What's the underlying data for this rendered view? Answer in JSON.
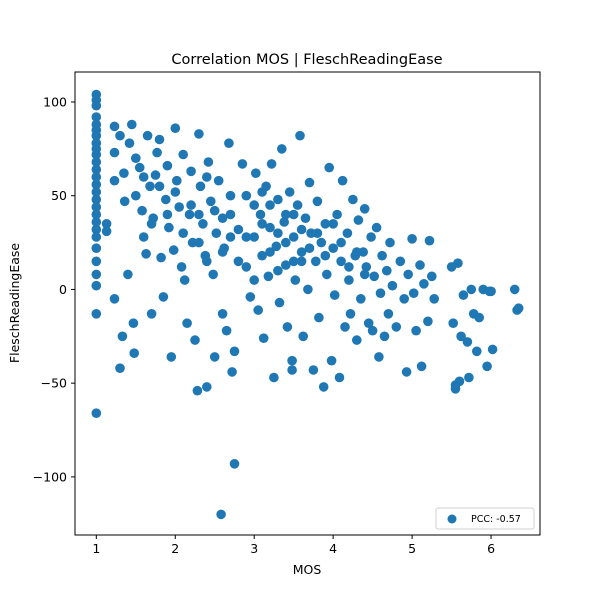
{
  "chart_data": {
    "type": "scatter",
    "title": "Correlation MOS | FleschReadingEase",
    "xlabel": "MOS",
    "ylabel": "FleschReadingEase",
    "xlim": [
      0.73,
      6.62
    ],
    "ylim": [
      -131,
      116
    ],
    "xticks": [
      1,
      2,
      3,
      4,
      5,
      6
    ],
    "yticks": [
      -100,
      -50,
      0,
      50,
      100
    ],
    "xtick_labels": [
      "1",
      "2",
      "3",
      "4",
      "5",
      "6"
    ],
    "ytick_labels": [
      "−100",
      "−50",
      "0",
      "50",
      "100"
    ],
    "grid": false,
    "legend_position": "lower-right",
    "legend": [
      "PCC: -0.57"
    ],
    "colors": {
      "series": "#1f77b4"
    },
    "series": [
      {
        "name": "PCC: -0.57",
        "points": [
          [
            1,
            104
          ],
          [
            1,
            101
          ],
          [
            1,
            98
          ],
          [
            1,
            92
          ],
          [
            1,
            88
          ],
          [
            1,
            85
          ],
          [
            1,
            82
          ],
          [
            1,
            78
          ],
          [
            1,
            75
          ],
          [
            1,
            72
          ],
          [
            1,
            68
          ],
          [
            1,
            64
          ],
          [
            1,
            60
          ],
          [
            1,
            56
          ],
          [
            1,
            52
          ],
          [
            1,
            48
          ],
          [
            1,
            44
          ],
          [
            1,
            40
          ],
          [
            1,
            36
          ],
          [
            1,
            32
          ],
          [
            1,
            28
          ],
          [
            1,
            22
          ],
          [
            1,
            15
          ],
          [
            1,
            8
          ],
          [
            1,
            2
          ],
          [
            1,
            -13
          ],
          [
            1,
            -66
          ],
          [
            1.13,
            35
          ],
          [
            1.13,
            31
          ],
          [
            1.23,
            87
          ],
          [
            1.23,
            73
          ],
          [
            1.23,
            58
          ],
          [
            1.23,
            -5
          ],
          [
            1.3,
            -42
          ],
          [
            1.33,
            -25
          ],
          [
            1.3,
            82
          ],
          [
            1.35,
            62
          ],
          [
            1.36,
            47
          ],
          [
            1.4,
            8
          ],
          [
            1.42,
            78
          ],
          [
            1.45,
            88
          ],
          [
            1.47,
            -18
          ],
          [
            1.48,
            -34
          ],
          [
            1.5,
            70
          ],
          [
            1.55,
            65
          ],
          [
            1.58,
            42
          ],
          [
            1.6,
            28
          ],
          [
            1.63,
            19
          ],
          [
            1.65,
            82
          ],
          [
            1.68,
            55
          ],
          [
            1.7,
            -13
          ],
          [
            1.72,
            38
          ],
          [
            1.75,
            61
          ],
          [
            1.77,
            73
          ],
          [
            1.8,
            80
          ],
          [
            1.82,
            17
          ],
          [
            1.85,
            -4
          ],
          [
            1.88,
            48
          ],
          [
            1.9,
            66
          ],
          [
            1.92,
            33
          ],
          [
            1.95,
            -36
          ],
          [
            1.98,
            21
          ],
          [
            2,
            86
          ],
          [
            2.02,
            58
          ],
          [
            2.05,
            44
          ],
          [
            2.08,
            12
          ],
          [
            2.1,
            72
          ],
          [
            2.12,
            5
          ],
          [
            2.15,
            -18
          ],
          [
            2.18,
            40
          ],
          [
            2.2,
            63
          ],
          [
            2.22,
            25
          ],
          [
            2.25,
            -27
          ],
          [
            2.28,
            -54
          ],
          [
            2.3,
            83
          ],
          [
            2.32,
            55
          ],
          [
            2.35,
            35
          ],
          [
            2.38,
            18
          ],
          [
            2.4,
            -52
          ],
          [
            2.42,
            68
          ],
          [
            2.45,
            47
          ],
          [
            2.48,
            8
          ],
          [
            2.5,
            -36
          ],
          [
            2.52,
            30
          ],
          [
            2.55,
            58
          ],
          [
            2.58,
            -120
          ],
          [
            2.6,
            -13
          ],
          [
            2.62,
            22
          ],
          [
            2.65,
            -22
          ],
          [
            2.68,
            78
          ],
          [
            2.7,
            40
          ],
          [
            2.72,
            -44
          ],
          [
            2.75,
            -93
          ],
          [
            2.75,
            -33
          ],
          [
            2.8,
            15
          ],
          [
            2.85,
            67
          ],
          [
            2.9,
            50
          ],
          [
            2.95,
            -4
          ],
          [
            3,
            28
          ],
          [
            3.02,
            62
          ],
          [
            3.05,
            -11
          ],
          [
            3.08,
            40
          ],
          [
            3.1,
            18
          ],
          [
            3.12,
            -26
          ],
          [
            3.15,
            55
          ],
          [
            3.18,
            7
          ],
          [
            3.2,
            33
          ],
          [
            3.22,
            67
          ],
          [
            3.25,
            -47
          ],
          [
            3.28,
            23
          ],
          [
            3.3,
            48
          ],
          [
            3.32,
            -7
          ],
          [
            3.35,
            75
          ],
          [
            3.38,
            36
          ],
          [
            3.4,
            13
          ],
          [
            3.42,
            -20
          ],
          [
            3.45,
            52
          ],
          [
            3.48,
            -43
          ],
          [
            3.48,
            -38
          ],
          [
            3.5,
            28
          ],
          [
            3.52,
            5
          ],
          [
            3.55,
            45
          ],
          [
            3.58,
            82
          ],
          [
            3.6,
            20
          ],
          [
            3.62,
            -25
          ],
          [
            3.65,
            38
          ],
          [
            3.68,
            0
          ],
          [
            3.7,
            57
          ],
          [
            3.72,
            30
          ],
          [
            3.75,
            -43
          ],
          [
            3.78,
            15
          ],
          [
            3.8,
            47
          ],
          [
            3.82,
            -15
          ],
          [
            3.85,
            25
          ],
          [
            3.88,
            -52
          ],
          [
            3.9,
            35
          ],
          [
            3.92,
            8
          ],
          [
            3.95,
            65
          ],
          [
            3.98,
            -38
          ],
          [
            4,
            22
          ],
          [
            4.02,
            -3
          ],
          [
            4.05,
            40
          ],
          [
            4.08,
            -47
          ],
          [
            4.1,
            15
          ],
          [
            4.12,
            58
          ],
          [
            4.15,
            -20
          ],
          [
            4.18,
            30
          ],
          [
            4.2,
            5
          ],
          [
            4.22,
            -13
          ],
          [
            4.25,
            48
          ],
          [
            4.28,
            18
          ],
          [
            4.3,
            -27
          ],
          [
            4.32,
            37
          ],
          [
            4.35,
            -5
          ],
          [
            4.38,
            20
          ],
          [
            4.4,
            43
          ],
          [
            4.42,
            12
          ],
          [
            4.45,
            -18
          ],
          [
            4.48,
            28
          ],
          [
            4.5,
            -22
          ],
          [
            4.52,
            7
          ],
          [
            4.55,
            33
          ],
          [
            4.58,
            -36
          ],
          [
            4.6,
            -2
          ],
          [
            4.62,
            18
          ],
          [
            4.65,
            -25
          ],
          [
            4.68,
            10
          ],
          [
            4.7,
            -13
          ],
          [
            4.72,
            25
          ],
          [
            4.75,
            2
          ],
          [
            4.8,
            -20
          ],
          [
            4.85,
            15
          ],
          [
            4.9,
            -5
          ],
          [
            4.93,
            -44
          ],
          [
            4.95,
            8
          ],
          [
            5,
            27
          ],
          [
            5.02,
            -2
          ],
          [
            5.05,
            -22
          ],
          [
            5.1,
            13
          ],
          [
            5.12,
            -41
          ],
          [
            5.15,
            3
          ],
          [
            5.2,
            -17
          ],
          [
            5.22,
            26
          ],
          [
            5.25,
            7
          ],
          [
            5.28,
            -5
          ],
          [
            5.5,
            12
          ],
          [
            5.52,
            -18
          ],
          [
            5.55,
            -51
          ],
          [
            5.55,
            -53
          ],
          [
            5.58,
            14
          ],
          [
            5.6,
            -49
          ],
          [
            5.62,
            -25
          ],
          [
            5.65,
            -3
          ],
          [
            5.7,
            -28
          ],
          [
            5.72,
            -47
          ],
          [
            5.75,
            0
          ],
          [
            5.78,
            -13
          ],
          [
            5.82,
            -33
          ],
          [
            5.85,
            -15
          ],
          [
            5.9,
            0
          ],
          [
            5.95,
            -41
          ],
          [
            5.98,
            -1
          ],
          [
            6,
            -1
          ],
          [
            6.02,
            -32
          ],
          [
            6.3,
            0
          ],
          [
            6.33,
            -11
          ],
          [
            6.35,
            -10
          ],
          [
            1.5,
            50
          ],
          [
            1.6,
            60
          ],
          [
            1.7,
            35
          ],
          [
            1.8,
            55
          ],
          [
            1.9,
            40
          ],
          [
            2.0,
            52
          ],
          [
            2.1,
            30
          ],
          [
            2.2,
            45
          ],
          [
            2.3,
            25
          ],
          [
            2.4,
            60
          ],
          [
            2.5,
            42
          ],
          [
            2.6,
            20
          ],
          [
            2.7,
            50
          ],
          [
            2.8,
            32
          ],
          [
            2.9,
            28
          ],
          [
            3.0,
            45
          ],
          [
            3.1,
            35
          ],
          [
            3.2,
            20
          ],
          [
            3.3,
            30
          ],
          [
            3.4,
            25
          ],
          [
            3.5,
            40
          ],
          [
            3.6,
            15
          ],
          [
            3.7,
            22
          ],
          [
            3.8,
            30
          ],
          [
            3.9,
            18
          ],
          [
            4.0,
            35
          ],
          [
            4.1,
            25
          ],
          [
            4.2,
            12
          ],
          [
            4.3,
            20
          ],
          [
            4.4,
            8
          ],
          [
            3.3,
            10
          ],
          [
            3.4,
            40
          ],
          [
            3.5,
            15
          ],
          [
            3.6,
            32
          ],
          [
            3.2,
            45
          ],
          [
            2.9,
            12
          ],
          [
            3.0,
            5
          ],
          [
            3.1,
            52
          ],
          [
            2.7,
            28
          ],
          [
            2.6,
            38
          ],
          [
            2.4,
            15
          ],
          [
            2.3,
            40
          ]
        ]
      }
    ]
  }
}
